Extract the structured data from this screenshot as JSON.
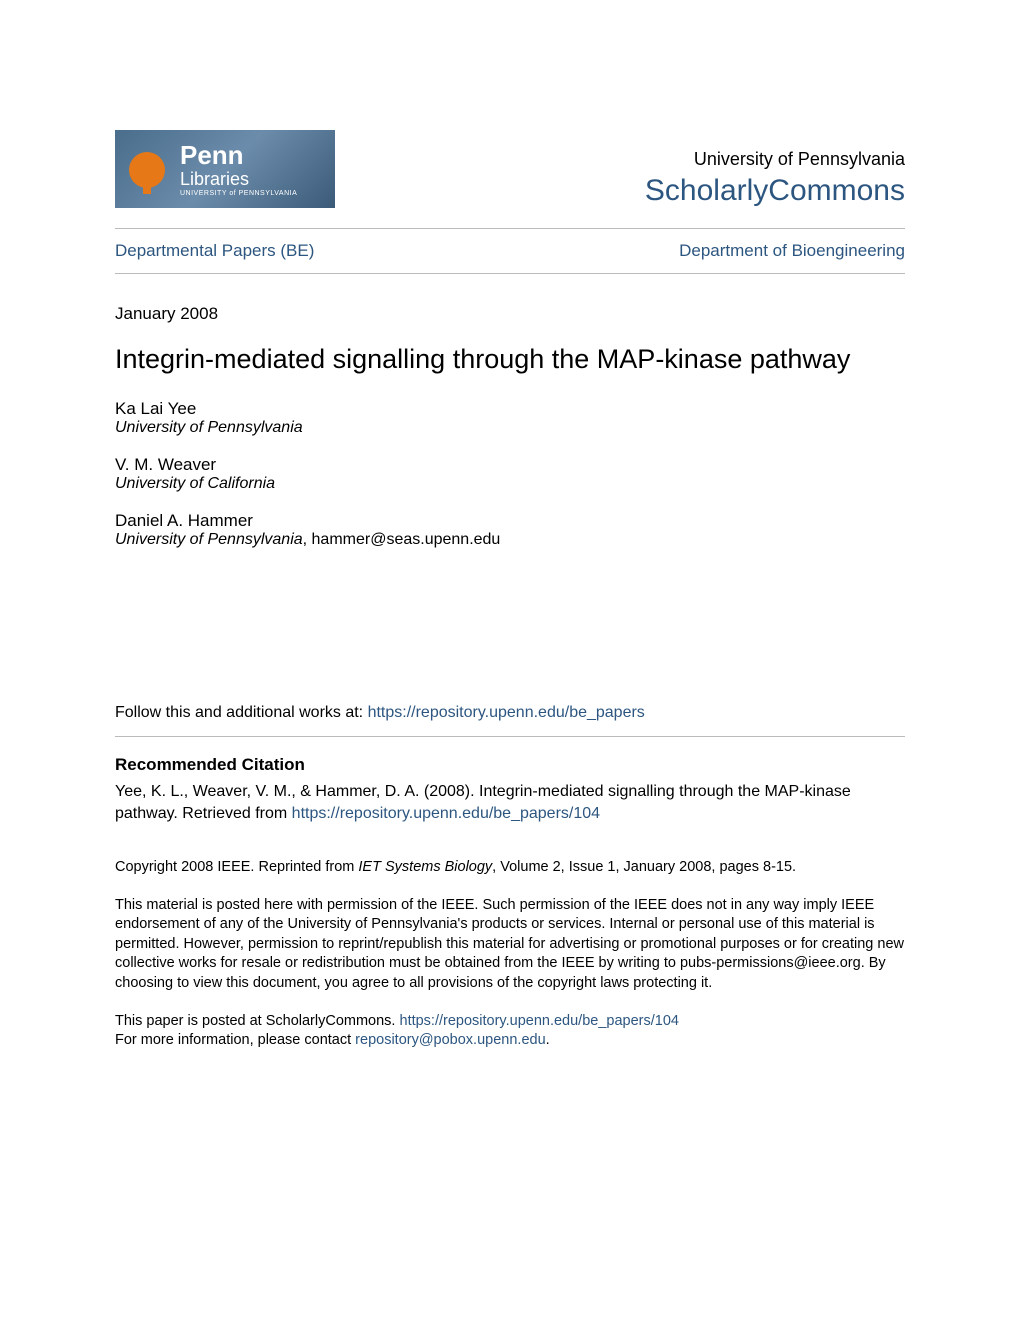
{
  "header": {
    "logo": {
      "main_text": "Penn",
      "sub_text": "Libraries",
      "tiny_text": "UNIVERSITY of PENNSYLVANIA",
      "bg_gradient_colors": [
        "#4a6d8c",
        "#6b8caa",
        "#3a5a78"
      ],
      "icon_color": "#e67817"
    },
    "university": "University of Pennsylvania",
    "site_name": "ScholarlyCommons",
    "site_name_color": "#2c5680"
  },
  "nav": {
    "left": "Departmental Papers (BE)",
    "right": "Department of Bioengineering",
    "link_color": "#2c5680"
  },
  "date": "January 2008",
  "title": "Integrin-mediated signalling through the MAP-kinase pathway",
  "authors": [
    {
      "name": "Ka Lai Yee",
      "affiliation": "University of Pennsylvania",
      "email": ""
    },
    {
      "name": "V. M. Weaver",
      "affiliation": "University of California",
      "email": ""
    },
    {
      "name": "Daniel A. Hammer",
      "affiliation": "University of Pennsylvania",
      "email": "hammer@seas.upenn.edu"
    }
  ],
  "follow_text_prefix": "Follow this and additional works at: ",
  "follow_link": "https://repository.upenn.edu/be_papers",
  "citation": {
    "heading": "Recommended Citation",
    "text_prefix": "Yee, K. L., Weaver, V. M., & Hammer, D. A. (2008). Integrin-mediated signalling through the MAP-kinase pathway. Retrieved from ",
    "link": "https://repository.upenn.edu/be_papers/104"
  },
  "copyright": {
    "prefix": "Copyright 2008 IEEE. Reprinted from ",
    "journal": "IET Systems Biology",
    "suffix": ", Volume 2, Issue 1, January 2008, pages 8-15."
  },
  "disclaimer": "This material is posted here with permission of the IEEE. Such permission of the IEEE does not in any way imply IEEE endorsement of any of the University of Pennsylvania's products or services. Internal or personal use of this material is permitted. However, permission to reprint/republish this material for advertising or promotional purposes or for creating new collective works for resale or redistribution must be obtained from the IEEE by writing to pubs-permissions@ieee.org. By choosing to view this document, you agree to all provisions of the copyright laws protecting it.",
  "footer": {
    "line1_prefix": "This paper is posted at ScholarlyCommons. ",
    "line1_link": "https://repository.upenn.edu/be_papers/104",
    "line2_prefix": "For more information, please contact ",
    "line2_link": "repository@pobox.upenn.edu",
    "line2_suffix": "."
  },
  "colors": {
    "text": "#000000",
    "link": "#2c5680",
    "divider": "#bbbbbb",
    "background": "#ffffff"
  },
  "typography": {
    "body_font": "Arial, Helvetica, sans-serif",
    "title_fontsize": 27,
    "site_name_fontsize": 30,
    "nav_fontsize": 17,
    "body_fontsize": 16,
    "small_fontsize": 14.5
  }
}
